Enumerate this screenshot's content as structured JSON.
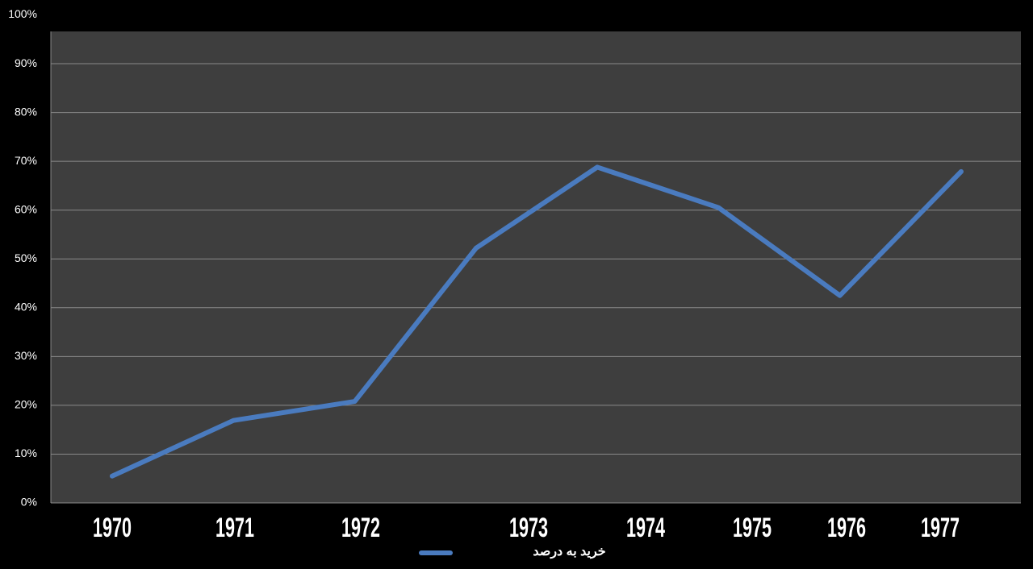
{
  "chart_data": {
    "type": "line",
    "categories": [
      "1970",
      "1971",
      "1972",
      "1973",
      "1974",
      "1975",
      "1976",
      "1977"
    ],
    "series": [
      {
        "name": "خرید به درصد",
        "color": "#4a7bbf",
        "values": [
          5.5,
          16.9,
          20.8,
          52.2,
          68.8,
          60.5,
          42.5,
          67.9
        ]
      }
    ],
    "ylim": [
      0,
      100
    ],
    "yticks": [
      {
        "value": 0,
        "label": "0%"
      },
      {
        "value": 10,
        "label": "10%"
      },
      {
        "value": 20,
        "label": "20%"
      },
      {
        "value": 30,
        "label": "30%"
      },
      {
        "value": 40,
        "label": "40%"
      },
      {
        "value": 50,
        "label": "50%"
      },
      {
        "value": 60,
        "label": "60%"
      },
      {
        "value": 70,
        "label": "70%"
      },
      {
        "value": 80,
        "label": "80%"
      },
      {
        "value": 90,
        "label": "90%"
      },
      {
        "value": 100,
        "label": "100%"
      }
    ],
    "grid": true,
    "legend": "bottom"
  }
}
